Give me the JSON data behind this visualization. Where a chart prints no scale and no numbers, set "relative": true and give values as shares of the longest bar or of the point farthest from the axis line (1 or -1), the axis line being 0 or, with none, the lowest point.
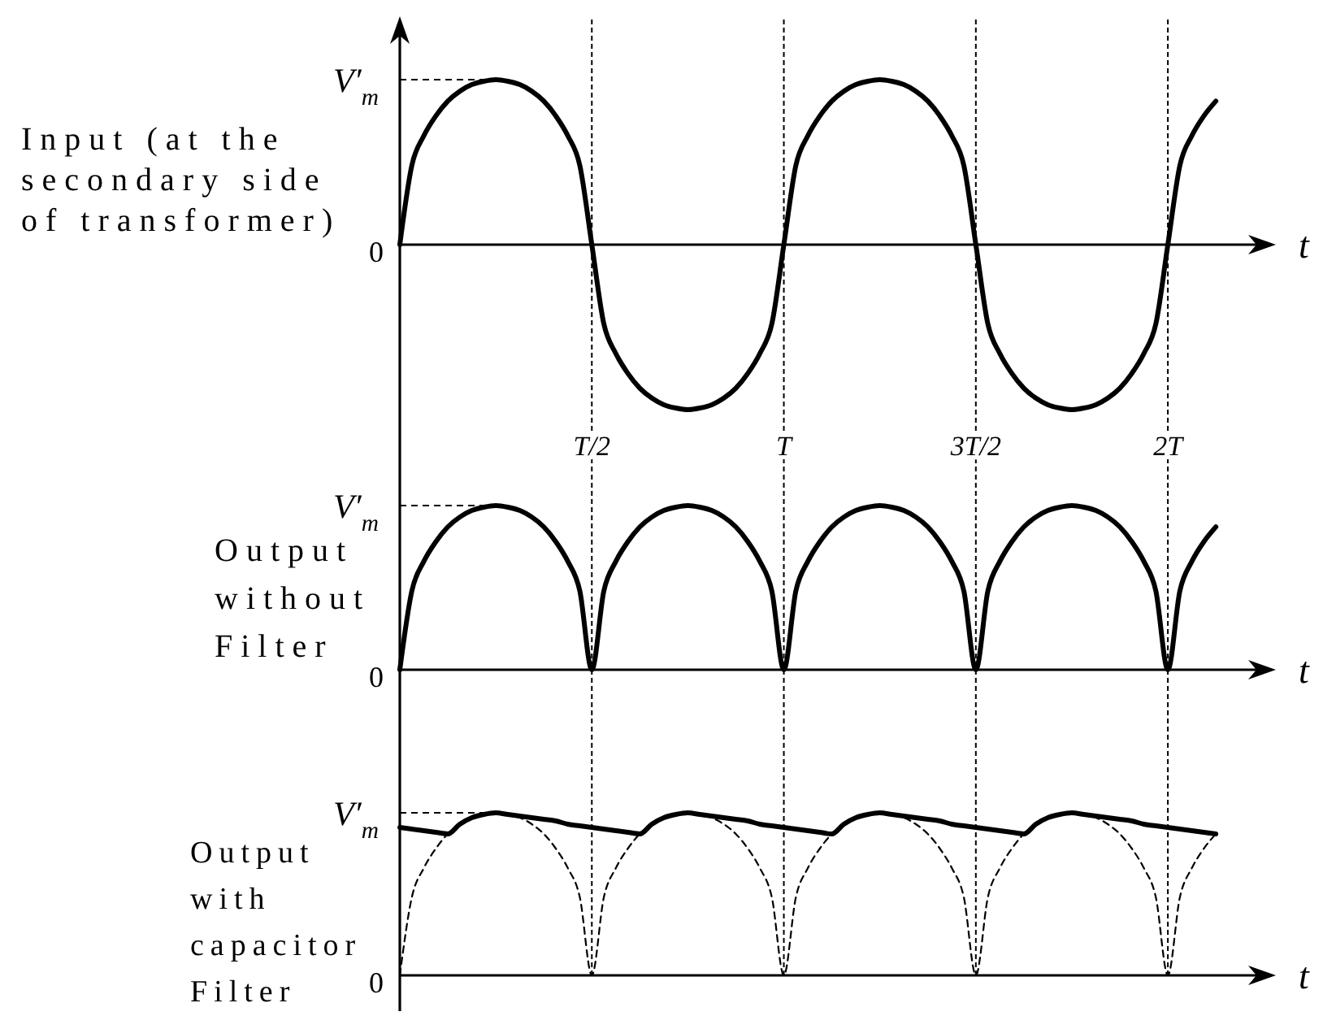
{
  "chart_data": [
    {
      "type": "line",
      "relative": true,
      "ylabel": "Input (at the\nsecondary side\nof transformer)",
      "xlabel": "t",
      "tick_labels": "x",
      "grid": "x",
      "categories": [
        null,
        null,
        null,
        null,
        null,
        null,
        null,
        null,
        null,
        null,
        null,
        null,
        null,
        null,
        null,
        null,
        "T/2",
        null,
        null,
        null,
        null,
        null,
        null,
        null,
        null,
        null,
        null,
        null,
        null,
        null,
        null,
        null,
        "T",
        null,
        null,
        null,
        null,
        null,
        null,
        null,
        null,
        null,
        null,
        null,
        null,
        null,
        null,
        null,
        "3T/2",
        null,
        null,
        null,
        null,
        null,
        null,
        null,
        null,
        null,
        null,
        null,
        null,
        null,
        null,
        null,
        "2T",
        null,
        null,
        null,
        null,
        null,
        null,
        null,
        null,
        null
      ],
      "series": [
        {
          "color": "#000000",
          "values": [
            0,
            0.48,
            0.66,
            0.78,
            0.87,
            0.93,
            0.97,
            0.99,
            1,
            0.99,
            0.97,
            0.93,
            0.87,
            0.78,
            0.66,
            0.48,
            0,
            -0.48,
            -0.66,
            -0.78,
            -0.87,
            -0.93,
            -0.97,
            -0.99,
            -1,
            -0.99,
            -0.97,
            -0.93,
            -0.87,
            -0.78,
            -0.66,
            -0.48,
            0,
            0.48,
            0.66,
            0.78,
            0.87,
            0.93,
            0.97,
            0.99,
            1,
            0.99,
            0.97,
            0.93,
            0.87,
            0.78,
            0.66,
            0.48,
            0,
            -0.48,
            -0.66,
            -0.78,
            -0.87,
            -0.93,
            -0.97,
            -0.99,
            -1,
            -0.99,
            -0.97,
            -0.93,
            -0.87,
            -0.78,
            -0.66,
            -0.48,
            0,
            0.48,
            0.66,
            0.78,
            0.87,
            null,
            null,
            null,
            null,
            null
          ]
        }
      ],
      "annotations": [
        "0"
      ],
      "ref_lines": [
        {
          "axis": "y",
          "value": 1,
          "label": "V′$_{m}$",
          "line_style": "dashed"
        }
      ]
    },
    {
      "type": "line",
      "relative": true,
      "ylabel": "Output\nwithout\nFilter",
      "xlabel": "t",
      "tick_labels": false,
      "categories": [
        null,
        null,
        null,
        null,
        null,
        null,
        null,
        null,
        null,
        null,
        null,
        null,
        null,
        null,
        null,
        null,
        null,
        null,
        null,
        null,
        null,
        null,
        null,
        null,
        null,
        null,
        null,
        null,
        null,
        null,
        null,
        null,
        null,
        null,
        null,
        null,
        null,
        null,
        null,
        null,
        null,
        null,
        null,
        null,
        null,
        null,
        null,
        null,
        null,
        null,
        null,
        null,
        null,
        null,
        null,
        null,
        null,
        null,
        null,
        null,
        null,
        null,
        null,
        null,
        null,
        null,
        null,
        null,
        null,
        null,
        null,
        null,
        null,
        null
      ],
      "series": [
        {
          "color": "#000000",
          "values": [
            0,
            0.48,
            0.66,
            0.78,
            0.87,
            0.93,
            0.97,
            0.99,
            1,
            0.99,
            0.97,
            0.93,
            0.87,
            0.78,
            0.66,
            0.48,
            0,
            0.48,
            0.66,
            0.78,
            0.87,
            0.93,
            0.97,
            0.99,
            1,
            0.99,
            0.97,
            0.93,
            0.87,
            0.78,
            0.66,
            0.48,
            0,
            0.48,
            0.66,
            0.78,
            0.87,
            0.93,
            0.97,
            0.99,
            1,
            0.99,
            0.97,
            0.93,
            0.87,
            0.78,
            0.66,
            0.48,
            0,
            0.48,
            0.66,
            0.78,
            0.87,
            0.93,
            0.97,
            0.99,
            1,
            0.99,
            0.97,
            0.93,
            0.87,
            0.78,
            0.66,
            0.48,
            0,
            0.48,
            0.66,
            0.78,
            0.87,
            null,
            null,
            null,
            null,
            null
          ]
        }
      ],
      "annotations": [
        "0"
      ],
      "ref_lines": [
        {
          "axis": "y",
          "value": 1,
          "label": "V′$_{m}$",
          "line_style": "dashed"
        }
      ]
    },
    {
      "type": "line",
      "relative": true,
      "ylabel": "Output\nwith\ncapacitor\nFilter",
      "xlabel": "t",
      "tick_labels": false,
      "categories": [
        null,
        null,
        null,
        null,
        null,
        null,
        null,
        null,
        null,
        null,
        null,
        null,
        null,
        null,
        null,
        null,
        null,
        null,
        null,
        null,
        null,
        null,
        null,
        null,
        null,
        null,
        null,
        null,
        null,
        null,
        null,
        null,
        null,
        null,
        null,
        null,
        null,
        null,
        null,
        null,
        null,
        null,
        null,
        null,
        null,
        null,
        null,
        null,
        null,
        null,
        null,
        null,
        null,
        null,
        null,
        null,
        null,
        null,
        null,
        null,
        null,
        null,
        null,
        null,
        null,
        null,
        null,
        null,
        null,
        null,
        null,
        null,
        null,
        null
      ],
      "series": [
        {
          "color": "#000000",
          "line_style": "dashed",
          "values": [
            0,
            0.48,
            0.66,
            0.78,
            0.87,
            0.93,
            0.97,
            0.99,
            1,
            0.99,
            0.97,
            0.93,
            0.87,
            0.78,
            0.66,
            0.48,
            0,
            0.48,
            0.66,
            0.78,
            0.87,
            0.93,
            0.97,
            0.99,
            1,
            0.99,
            0.97,
            0.93,
            0.87,
            0.78,
            0.66,
            0.48,
            0,
            0.48,
            0.66,
            0.78,
            0.87,
            0.93,
            0.97,
            0.99,
            1,
            0.99,
            0.97,
            0.93,
            0.87,
            0.78,
            0.66,
            0.48,
            0,
            0.48,
            0.66,
            0.78,
            0.87,
            0.93,
            0.97,
            0.99,
            1,
            0.99,
            0.97,
            0.93,
            0.87,
            0.78,
            0.66,
            0.48,
            0,
            0.48,
            0.66,
            0.78,
            0.87,
            null,
            null,
            null,
            null,
            null
          ]
        },
        {
          "color": "#000000",
          "values": [
            0.91,
            0.9,
            0.89,
            0.88,
            0.87,
            0.93,
            0.97,
            0.99,
            1,
            0.99,
            0.98,
            0.97,
            0.96,
            0.95,
            0.93,
            0.92,
            0.91,
            0.9,
            0.89,
            0.88,
            0.87,
            0.93,
            0.97,
            0.99,
            1,
            0.99,
            0.98,
            0.97,
            0.96,
            0.95,
            0.93,
            0.92,
            0.91,
            0.9,
            0.89,
            0.88,
            0.87,
            0.93,
            0.97,
            0.99,
            1,
            0.99,
            0.98,
            0.97,
            0.96,
            0.95,
            0.93,
            0.92,
            0.91,
            0.9,
            0.89,
            0.88,
            0.87,
            0.93,
            0.97,
            0.99,
            1,
            0.99,
            0.98,
            0.97,
            0.96,
            0.95,
            0.93,
            0.92,
            0.91,
            0.9,
            0.89,
            0.88,
            0.87,
            null,
            null,
            null,
            null,
            null
          ]
        }
      ],
      "annotations": [
        "0"
      ],
      "ref_lines": [
        {
          "axis": "y",
          "value": 1,
          "label": "V′$_{m}$",
          "line_style": "dashed"
        }
      ]
    }
  ]
}
